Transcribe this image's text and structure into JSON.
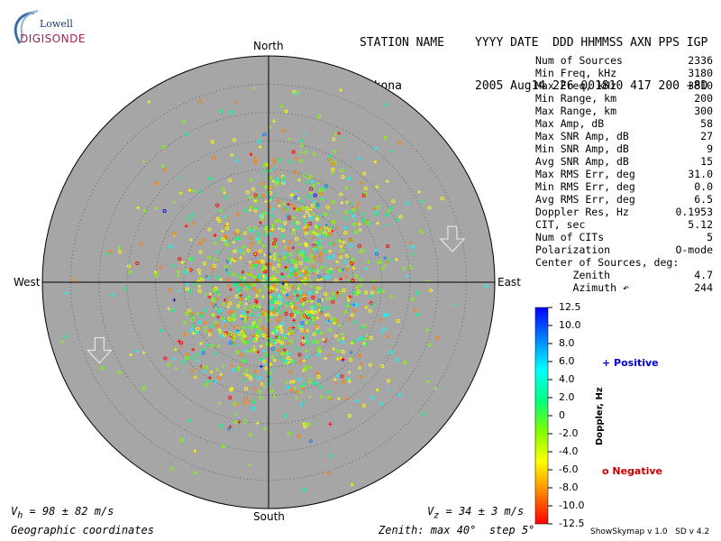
{
  "logo": {
    "line1": "Lowell",
    "line2": "DIGISONDE"
  },
  "header": {
    "labels_left": "STATION NAME",
    "labels_right": "YYYY DATE  DDD HHMMSS AXN PPS IGP",
    "station": "Gakona",
    "values_right": "2005 Aug14 226 001810 417 200 +8D"
  },
  "stats": [
    {
      "name": "Num of Sources",
      "value": "2336"
    },
    {
      "name": "Min Freq, kHz",
      "value": "3180"
    },
    {
      "name": "Max Freq, kHz",
      "value": "3810"
    },
    {
      "name": "Min Range, km",
      "value": "200"
    },
    {
      "name": "Max Range, km",
      "value": "300"
    },
    {
      "name": "Max Amp, dB",
      "value": "58"
    },
    {
      "name": "Max SNR Amp, dB",
      "value": "27"
    },
    {
      "name": "Min SNR Amp, dB",
      "value": "9"
    },
    {
      "name": "Avg SNR Amp, dB",
      "value": "15"
    },
    {
      "name": "Max RMS Err, deg",
      "value": "31.0"
    },
    {
      "name": "Min RMS Err, deg",
      "value": "0.0"
    },
    {
      "name": "Avg RMS Err, deg",
      "value": "6.5"
    },
    {
      "name": "Doppler Res, Hz",
      "value": "0.1953"
    },
    {
      "name": "CIT, sec",
      "value": "5.12"
    },
    {
      "name": "Num of CITs",
      "value": "5"
    },
    {
      "name": "Polarization",
      "value": "O-mode"
    },
    {
      "name": "Center of Sources, deg:",
      "value": ""
    },
    {
      "name": "      Zenith",
      "value": "4.7"
    },
    {
      "name": "      Azimuth ↶",
      "value": "244"
    }
  ],
  "footer": {
    "vh": "V",
    "vh_sub": "h",
    "vh_rest": " = 98 ± 82 m/s",
    "vz": "V",
    "vz_sub": "z",
    "vz_rest": " = 34 ± 3 m/s",
    "coords": "Geographic coordinates",
    "zenith": "Zenith: max 40°  step 5°",
    "version": "ShowSkymap v 1.0   SD v 4.2"
  },
  "legend": {
    "positive": "+ Positive",
    "negative": "o Negative"
  },
  "colors": {
    "disk": "#a6a6a6",
    "scale": [
      "#ff0000",
      "#ff8000",
      "#ffff00",
      "#80ff00",
      "#00ff80",
      "#00ffff",
      "#0080ff",
      "#0000ff"
    ]
  },
  "chart_data": {
    "type": "scatter",
    "projection": "polar skymap",
    "compass": {
      "north": "North",
      "south": "South",
      "east": "East",
      "west": "West"
    },
    "zenith_max_deg": 40,
    "zenith_step_deg": 5,
    "arrows": [
      {
        "azimuth_deg": 245,
        "zenith_deg": 33,
        "direction": "south"
      },
      {
        "azimuth_deg": 80,
        "zenith_deg": 33,
        "direction": "south"
      }
    ],
    "doppler_colorbar": {
      "label": "Doppler, Hz",
      "range": [
        -12.5,
        12.5
      ],
      "ticks": [
        "12.5",
        "10.0",
        "8.0",
        "6.0",
        "4.0",
        "2.0",
        "0",
        "-2.0",
        "-4.0",
        "-6.0",
        "-8.0",
        "-10.0",
        "-12.5"
      ]
    },
    "sources_summary": {
      "count": 2336,
      "center_zenith_deg": 4.7,
      "center_azimuth_deg": 244
    }
  }
}
